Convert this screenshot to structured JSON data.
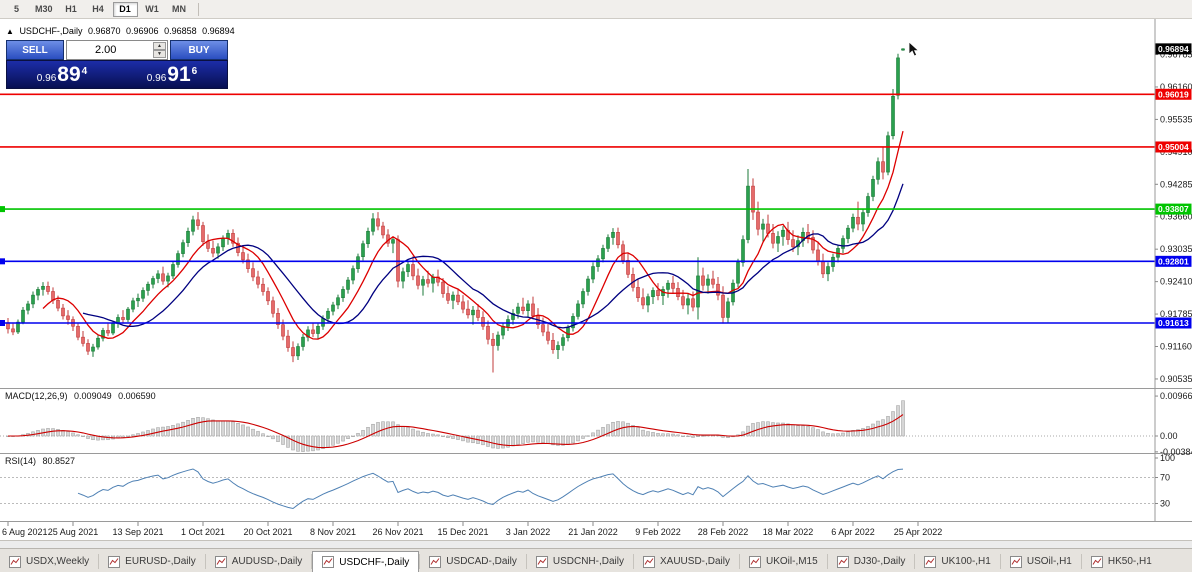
{
  "toolbar": {
    "timeframes": [
      {
        "label": "5",
        "active": false
      },
      {
        "label": "M30",
        "active": false
      },
      {
        "label": "H1",
        "active": false
      },
      {
        "label": "H4",
        "active": false
      },
      {
        "label": "D1",
        "active": true
      },
      {
        "label": "W1",
        "active": false
      },
      {
        "label": "MN",
        "active": false
      }
    ]
  },
  "chart_header": {
    "collapse_icon": "▲",
    "title": "USDCHF-,Daily",
    "open": "0.96870",
    "high": "0.96906",
    "low": "0.96858",
    "close": "0.96894"
  },
  "one_click": {
    "sell_label": "SELL",
    "buy_label": "BUY",
    "volume": "2.00",
    "bid": {
      "prefix": "0.96",
      "big": "89",
      "sup": "4"
    },
    "ask": {
      "prefix": "0.96",
      "big": "91",
      "sup": "6"
    }
  },
  "indicators": {
    "macd": {
      "label": "MACD(12,26,9)",
      "value1": "0.009049",
      "value2": "0.006590"
    },
    "rsi": {
      "label": "RSI(14)",
      "value": "80.8527"
    }
  },
  "tabs": [
    {
      "label": "USDX,Weekly",
      "active": false
    },
    {
      "label": "EURUSD-,Daily",
      "active": false
    },
    {
      "label": "AUDUSD-,Daily",
      "active": false
    },
    {
      "label": "USDCHF-,Daily",
      "active": true
    },
    {
      "label": "USDCAD-,Daily",
      "active": false
    },
    {
      "label": "USDCNH-,Daily",
      "active": false
    },
    {
      "label": "XAUUSD-,Daily",
      "active": false
    },
    {
      "label": "UKOil-,M15",
      "active": false
    },
    {
      "label": "DJ30-,Daily",
      "active": false
    },
    {
      "label": "UK100-,H1",
      "active": false
    },
    {
      "label": "USOil-,H1",
      "active": false
    },
    {
      "label": "HK50-,H1",
      "active": false
    }
  ],
  "chart_data": {
    "type": "candlestick",
    "symbol": "USDCHF-",
    "period": "Daily",
    "current_price": 0.96894,
    "view": {
      "price_max": 0.9745,
      "price_min": 0.9038
    },
    "price_ticks": [
      0.96785,
      0.9616,
      0.95535,
      0.9491,
      0.94285,
      0.9366,
      0.93035,
      0.9241,
      0.91785,
      0.9116,
      0.90535
    ],
    "hlines": [
      {
        "price": 0.96019,
        "color": "#ee0000",
        "marker": false
      },
      {
        "price": 0.95004,
        "color": "#ee0000",
        "marker": false
      },
      {
        "price": 0.93807,
        "color": "#00c400",
        "marker": true
      },
      {
        "price": 0.92801,
        "color": "#0000ee",
        "marker": true
      },
      {
        "price": 0.91613,
        "color": "#0000ee",
        "marker": true
      }
    ],
    "x_labels": [
      [
        0,
        "6 Aug 2021"
      ],
      [
        13,
        "25 Aug 2021"
      ],
      [
        26,
        "13 Sep 2021"
      ],
      [
        39,
        "1 Oct 2021"
      ],
      [
        52,
        "20 Oct 2021"
      ],
      [
        65,
        "8 Nov 2021"
      ],
      [
        78,
        "26 Nov 2021"
      ],
      [
        91,
        "15 Dec 2021"
      ],
      [
        104,
        "3 Jan 2022"
      ],
      [
        117,
        "21 Jan 2022"
      ],
      [
        130,
        "9 Feb 2022"
      ],
      [
        143,
        "28 Feb 2022"
      ],
      [
        156,
        "18 Mar 2022"
      ],
      [
        169,
        "6 Apr 2022"
      ],
      [
        182,
        "25 Apr 2022"
      ]
    ],
    "ma": [
      {
        "period": 8,
        "color": "#dd0000"
      },
      {
        "period": 16,
        "color": "#000080"
      }
    ],
    "macd": {
      "fast": 12,
      "slow": 26,
      "signal": 9,
      "axis_labels": [
        "0.009663",
        "0.00",
        "-0.00384"
      ],
      "hist_fill": "#d6d6d6",
      "hist_stroke": "#9b9b9b",
      "signal_color": "#cc0000"
    },
    "rsi": {
      "period": 14,
      "color": "#4f81b4",
      "axis_labels": [
        100,
        70,
        30
      ],
      "level_lines": [
        70,
        30
      ]
    },
    "colors": {
      "up_fill": "#2aa04e",
      "up_stroke": "#1b7a38",
      "down_fill": "#e56a6a",
      "down_stroke": "#c23b3b"
    },
    "ohlc": [
      [
        0.9162,
        0.9171,
        0.9141,
        0.915
      ],
      [
        0.915,
        0.916,
        0.9138,
        0.9144
      ],
      [
        0.9144,
        0.9168,
        0.914,
        0.9163
      ],
      [
        0.9163,
        0.9192,
        0.9159,
        0.9186
      ],
      [
        0.9186,
        0.9204,
        0.9178,
        0.9198
      ],
      [
        0.9198,
        0.9222,
        0.919,
        0.9215
      ],
      [
        0.9215,
        0.9231,
        0.9205,
        0.9226
      ],
      [
        0.9226,
        0.924,
        0.9214,
        0.9232
      ],
      [
        0.9232,
        0.9241,
        0.9216,
        0.9222
      ],
      [
        0.9222,
        0.923,
        0.9198,
        0.9205
      ],
      [
        0.9205,
        0.9214,
        0.9184,
        0.919
      ],
      [
        0.919,
        0.9198,
        0.9168,
        0.9175
      ],
      [
        0.9175,
        0.9186,
        0.9158,
        0.9168
      ],
      [
        0.9168,
        0.9174,
        0.9146,
        0.9155
      ],
      [
        0.9155,
        0.916,
        0.9128,
        0.9134
      ],
      [
        0.9134,
        0.9146,
        0.9116,
        0.9122
      ],
      [
        0.9122,
        0.913,
        0.91,
        0.9107
      ],
      [
        0.9107,
        0.9121,
        0.9096,
        0.9115
      ],
      [
        0.9115,
        0.9138,
        0.911,
        0.9132
      ],
      [
        0.9132,
        0.9152,
        0.9126,
        0.9147
      ],
      [
        0.9147,
        0.916,
        0.9136,
        0.9142
      ],
      [
        0.9142,
        0.9165,
        0.9138,
        0.916
      ],
      [
        0.916,
        0.9178,
        0.9152,
        0.9172
      ],
      [
        0.9172,
        0.9186,
        0.916,
        0.9168
      ],
      [
        0.9168,
        0.9192,
        0.9163,
        0.9188
      ],
      [
        0.9188,
        0.921,
        0.9182,
        0.9204
      ],
      [
        0.9204,
        0.9218,
        0.9192,
        0.9209
      ],
      [
        0.9209,
        0.923,
        0.9202,
        0.9224
      ],
      [
        0.9224,
        0.9241,
        0.9214,
        0.9236
      ],
      [
        0.9236,
        0.9252,
        0.9228,
        0.9247
      ],
      [
        0.9247,
        0.9263,
        0.9238,
        0.9256
      ],
      [
        0.9256,
        0.927,
        0.9235,
        0.9242
      ],
      [
        0.9242,
        0.9258,
        0.923,
        0.9252
      ],
      [
        0.9252,
        0.928,
        0.9246,
        0.9274
      ],
      [
        0.9274,
        0.9301,
        0.9268,
        0.9295
      ],
      [
        0.9295,
        0.9322,
        0.9288,
        0.9316
      ],
      [
        0.9316,
        0.9345,
        0.9308,
        0.9338
      ],
      [
        0.9338,
        0.9368,
        0.933,
        0.936
      ],
      [
        0.936,
        0.9375,
        0.9341,
        0.9349
      ],
      [
        0.9349,
        0.9356,
        0.931,
        0.9318
      ],
      [
        0.9318,
        0.9332,
        0.9298,
        0.9305
      ],
      [
        0.9305,
        0.932,
        0.9288,
        0.9296
      ],
      [
        0.9296,
        0.9315,
        0.9285,
        0.9308
      ],
      [
        0.9308,
        0.933,
        0.93,
        0.9324
      ],
      [
        0.9324,
        0.9341,
        0.9312,
        0.9334
      ],
      [
        0.9334,
        0.9342,
        0.9308,
        0.9315
      ],
      [
        0.9315,
        0.9326,
        0.929,
        0.9297
      ],
      [
        0.9297,
        0.931,
        0.9276,
        0.9283
      ],
      [
        0.9283,
        0.9295,
        0.9258,
        0.9266
      ],
      [
        0.9266,
        0.9278,
        0.9242,
        0.925
      ],
      [
        0.925,
        0.9262,
        0.9228,
        0.9236
      ],
      [
        0.9236,
        0.9248,
        0.9214,
        0.9222
      ],
      [
        0.9222,
        0.923,
        0.9196,
        0.9204
      ],
      [
        0.9204,
        0.9212,
        0.9172,
        0.918
      ],
      [
        0.918,
        0.919,
        0.915,
        0.9158
      ],
      [
        0.9158,
        0.9168,
        0.9128,
        0.9136
      ],
      [
        0.9136,
        0.9148,
        0.9106,
        0.9114
      ],
      [
        0.9114,
        0.9126,
        0.9086,
        0.9098
      ],
      [
        0.9098,
        0.9122,
        0.909,
        0.9116
      ],
      [
        0.9116,
        0.914,
        0.9108,
        0.9134
      ],
      [
        0.9134,
        0.9155,
        0.9126,
        0.9148
      ],
      [
        0.9148,
        0.9162,
        0.9134,
        0.9141
      ],
      [
        0.9141,
        0.916,
        0.913,
        0.9155
      ],
      [
        0.9155,
        0.9176,
        0.9148,
        0.917
      ],
      [
        0.917,
        0.919,
        0.9162,
        0.9184
      ],
      [
        0.9184,
        0.9202,
        0.9176,
        0.9196
      ],
      [
        0.9196,
        0.9216,
        0.9188,
        0.921
      ],
      [
        0.921,
        0.9232,
        0.9202,
        0.9226
      ],
      [
        0.9226,
        0.925,
        0.9218,
        0.9244
      ],
      [
        0.9244,
        0.9272,
        0.9236,
        0.9266
      ],
      [
        0.9266,
        0.9295,
        0.9258,
        0.9289
      ],
      [
        0.9289,
        0.932,
        0.9282,
        0.9314
      ],
      [
        0.9314,
        0.9345,
        0.9306,
        0.9338
      ],
      [
        0.9338,
        0.9373,
        0.933,
        0.9362
      ],
      [
        0.9362,
        0.9375,
        0.934,
        0.9348
      ],
      [
        0.9348,
        0.9356,
        0.9324,
        0.9331
      ],
      [
        0.9331,
        0.9342,
        0.9308,
        0.9315
      ],
      [
        0.9315,
        0.9328,
        0.9296,
        0.9322
      ],
      [
        0.9322,
        0.933,
        0.923,
        0.9242
      ],
      [
        0.9242,
        0.9268,
        0.9228,
        0.926
      ],
      [
        0.926,
        0.9282,
        0.925,
        0.9274
      ],
      [
        0.9274,
        0.929,
        0.9244,
        0.9252
      ],
      [
        0.9252,
        0.9266,
        0.9226,
        0.9234
      ],
      [
        0.9234,
        0.9252,
        0.9214,
        0.9245
      ],
      [
        0.9245,
        0.9262,
        0.923,
        0.9238
      ],
      [
        0.9238,
        0.9256,
        0.922,
        0.925
      ],
      [
        0.925,
        0.9264,
        0.9232,
        0.924
      ],
      [
        0.924,
        0.9248,
        0.921,
        0.9218
      ],
      [
        0.9218,
        0.9232,
        0.9198,
        0.9205
      ],
      [
        0.9205,
        0.9222,
        0.9188,
        0.9215
      ],
      [
        0.9215,
        0.9228,
        0.9196,
        0.9202
      ],
      [
        0.9202,
        0.9215,
        0.918,
        0.9188
      ],
      [
        0.9188,
        0.9205,
        0.917,
        0.9177
      ],
      [
        0.9177,
        0.9194,
        0.9158,
        0.9186
      ],
      [
        0.9186,
        0.9198,
        0.9165,
        0.9172
      ],
      [
        0.9172,
        0.9184,
        0.9148,
        0.9155
      ],
      [
        0.9155,
        0.9166,
        0.912,
        0.913
      ],
      [
        0.913,
        0.9142,
        0.9066,
        0.9118
      ],
      [
        0.9118,
        0.9145,
        0.9108,
        0.9138
      ],
      [
        0.9138,
        0.9162,
        0.913,
        0.9155
      ],
      [
        0.9155,
        0.9176,
        0.9146,
        0.9168
      ],
      [
        0.9168,
        0.9188,
        0.9158,
        0.918
      ],
      [
        0.918,
        0.92,
        0.917,
        0.9192
      ],
      [
        0.9192,
        0.921,
        0.9178,
        0.9185
      ],
      [
        0.9185,
        0.9205,
        0.9172,
        0.9198
      ],
      [
        0.9198,
        0.9212,
        0.9168,
        0.9175
      ],
      [
        0.9175,
        0.919,
        0.915,
        0.9158
      ],
      [
        0.9158,
        0.9172,
        0.9136,
        0.9144
      ],
      [
        0.9144,
        0.916,
        0.912,
        0.9128
      ],
      [
        0.9128,
        0.9142,
        0.9102,
        0.911
      ],
      [
        0.911,
        0.9126,
        0.9092,
        0.9118
      ],
      [
        0.9118,
        0.914,
        0.9108,
        0.9133
      ],
      [
        0.9133,
        0.9158,
        0.9126,
        0.9152
      ],
      [
        0.9152,
        0.918,
        0.9145,
        0.9174
      ],
      [
        0.9174,
        0.9205,
        0.9168,
        0.9198
      ],
      [
        0.9198,
        0.9228,
        0.919,
        0.9222
      ],
      [
        0.9222,
        0.9252,
        0.9214,
        0.9246
      ],
      [
        0.9246,
        0.9278,
        0.9238,
        0.927
      ],
      [
        0.927,
        0.9292,
        0.926,
        0.9285
      ],
      [
        0.9285,
        0.9312,
        0.9278,
        0.9305
      ],
      [
        0.9305,
        0.9332,
        0.9298,
        0.9326
      ],
      [
        0.9326,
        0.9344,
        0.9312,
        0.9336
      ],
      [
        0.9336,
        0.9345,
        0.9305,
        0.9312
      ],
      [
        0.9312,
        0.932,
        0.9275,
        0.9282
      ],
      [
        0.9282,
        0.9295,
        0.9248,
        0.9255
      ],
      [
        0.9255,
        0.9268,
        0.9222,
        0.923
      ],
      [
        0.923,
        0.9245,
        0.9202,
        0.921
      ],
      [
        0.921,
        0.9228,
        0.9188,
        0.9196
      ],
      [
        0.9196,
        0.9218,
        0.9182,
        0.9212
      ],
      [
        0.9212,
        0.923,
        0.9198,
        0.9224
      ],
      [
        0.9224,
        0.9238,
        0.9205,
        0.9214
      ],
      [
        0.9214,
        0.9232,
        0.9196,
        0.9226
      ],
      [
        0.9226,
        0.9244,
        0.921,
        0.9238
      ],
      [
        0.9238,
        0.9252,
        0.9218,
        0.9228
      ],
      [
        0.9228,
        0.924,
        0.9205,
        0.9212
      ],
      [
        0.9212,
        0.9225,
        0.9188,
        0.9196
      ],
      [
        0.9196,
        0.9218,
        0.9178,
        0.9208
      ],
      [
        0.9208,
        0.9222,
        0.9184,
        0.9192
      ],
      [
        0.9192,
        0.9288,
        0.9168,
        0.9252
      ],
      [
        0.9252,
        0.9268,
        0.9224,
        0.9234
      ],
      [
        0.9234,
        0.9255,
        0.9218,
        0.9246
      ],
      [
        0.9246,
        0.9262,
        0.9228,
        0.9236
      ],
      [
        0.9236,
        0.925,
        0.9205,
        0.9215
      ],
      [
        0.9215,
        0.9232,
        0.916,
        0.9172
      ],
      [
        0.9172,
        0.921,
        0.9162,
        0.9202
      ],
      [
        0.9202,
        0.9245,
        0.9195,
        0.9238
      ],
      [
        0.9238,
        0.9285,
        0.923,
        0.9278
      ],
      [
        0.9278,
        0.933,
        0.927,
        0.9322
      ],
      [
        0.9322,
        0.9458,
        0.9315,
        0.9425
      ],
      [
        0.9425,
        0.944,
        0.936,
        0.9375
      ],
      [
        0.9375,
        0.9395,
        0.933,
        0.9342
      ],
      [
        0.9342,
        0.9362,
        0.9318,
        0.9352
      ],
      [
        0.9352,
        0.937,
        0.9326,
        0.9334
      ],
      [
        0.9334,
        0.9352,
        0.9305,
        0.9315
      ],
      [
        0.9315,
        0.9338,
        0.9298,
        0.9328
      ],
      [
        0.9328,
        0.9348,
        0.931,
        0.934
      ],
      [
        0.934,
        0.9356,
        0.9312,
        0.9322
      ],
      [
        0.9322,
        0.934,
        0.9298,
        0.9308
      ],
      [
        0.9308,
        0.933,
        0.9292,
        0.932
      ],
      [
        0.932,
        0.9345,
        0.9308,
        0.9336
      ],
      [
        0.9336,
        0.9352,
        0.9315,
        0.9326
      ],
      [
        0.9326,
        0.934,
        0.9295,
        0.9302
      ],
      [
        0.9302,
        0.9318,
        0.9272,
        0.928
      ],
      [
        0.928,
        0.9295,
        0.9248,
        0.9256
      ],
      [
        0.9256,
        0.9278,
        0.9242,
        0.927
      ],
      [
        0.927,
        0.9295,
        0.926,
        0.9288
      ],
      [
        0.9288,
        0.9312,
        0.9278,
        0.9305
      ],
      [
        0.9305,
        0.933,
        0.9296,
        0.9324
      ],
      [
        0.9324,
        0.935,
        0.9315,
        0.9344
      ],
      [
        0.9344,
        0.9372,
        0.9336,
        0.9365
      ],
      [
        0.9365,
        0.9395,
        0.934,
        0.9352
      ],
      [
        0.9352,
        0.938,
        0.9338,
        0.9374
      ],
      [
        0.9374,
        0.9412,
        0.9366,
        0.9405
      ],
      [
        0.9405,
        0.9445,
        0.9396,
        0.9438
      ],
      [
        0.9438,
        0.948,
        0.9428,
        0.9472
      ],
      [
        0.9472,
        0.95,
        0.9438,
        0.9452
      ],
      [
        0.9452,
        0.953,
        0.9446,
        0.9522
      ],
      [
        0.9522,
        0.9612,
        0.9515,
        0.9598
      ],
      [
        0.96,
        0.968,
        0.9592,
        0.9672
      ],
      [
        0.9687,
        0.96906,
        0.96858,
        0.96894
      ]
    ]
  }
}
